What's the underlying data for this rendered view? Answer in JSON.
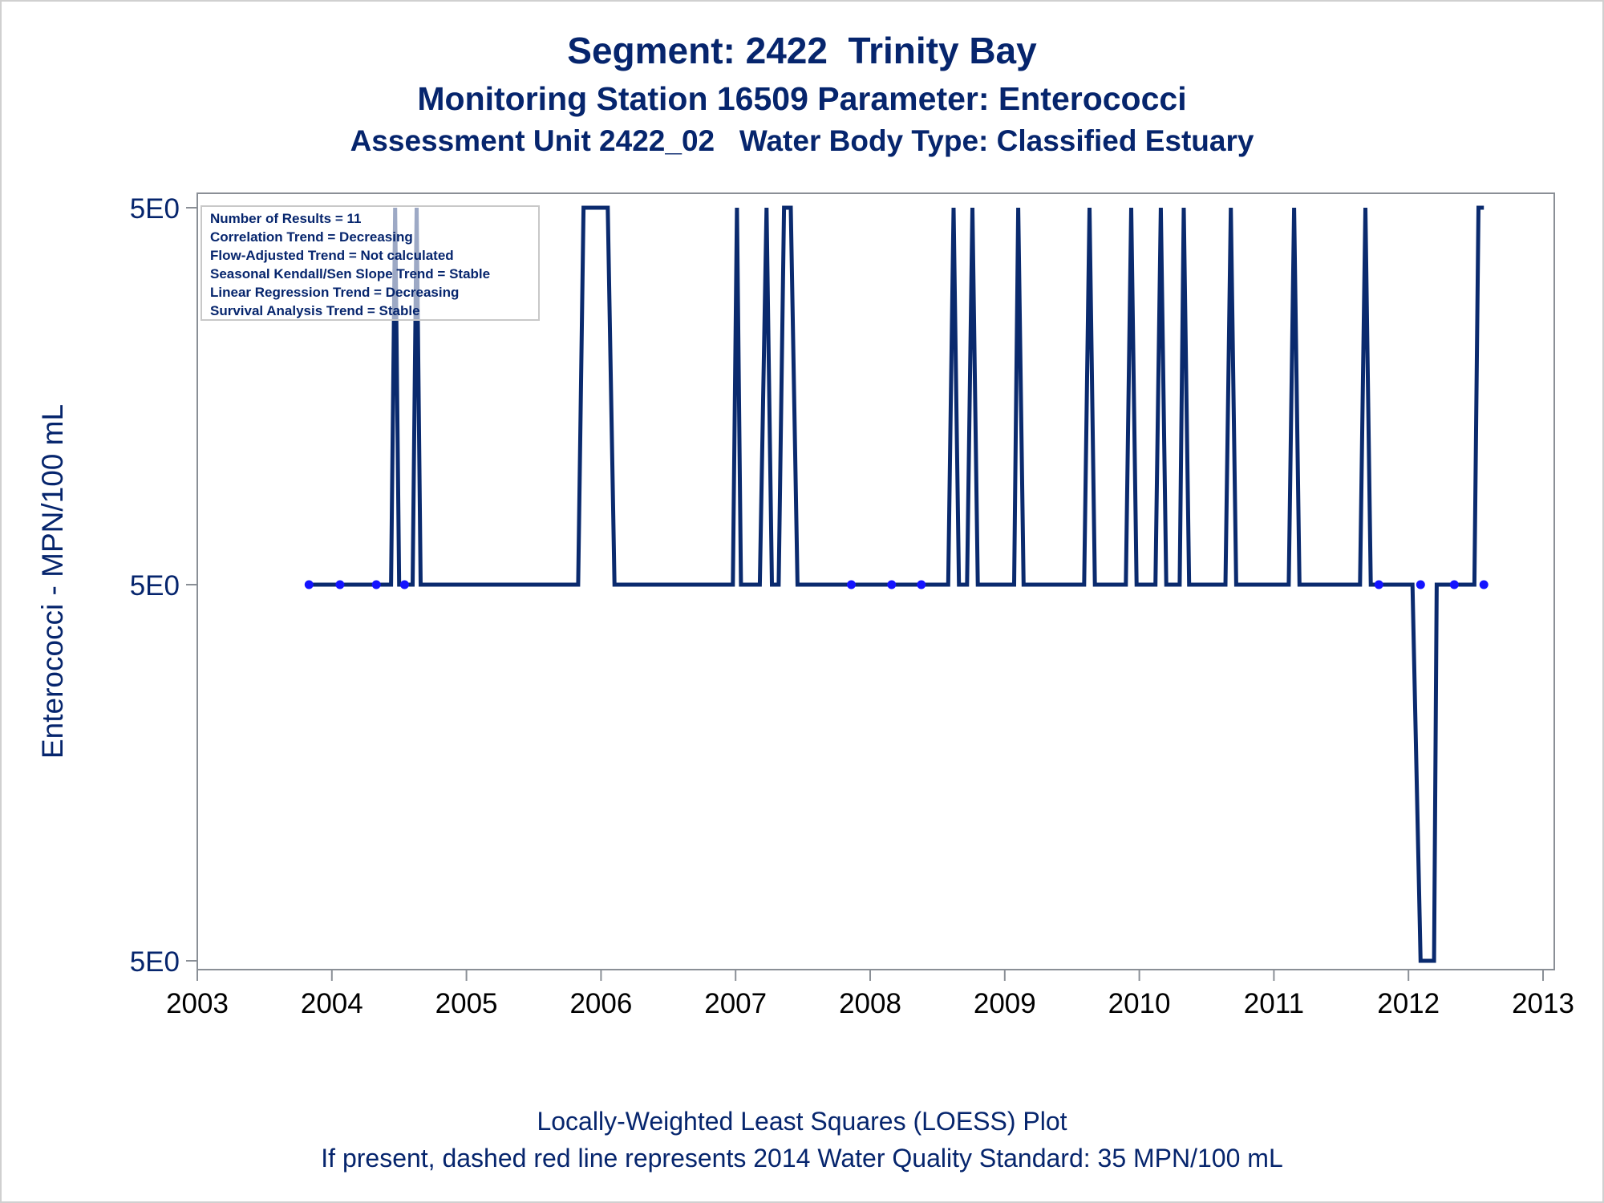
{
  "title": "Segment: 2422  Trinity Bay",
  "subtitle_1": "Monitoring Station 16509 Parameter: Enterococci",
  "subtitle_2": "Assessment Unit 2422_02   Water Body Type: Classified Estuary",
  "footnote_1": "Locally-Weighted Least Squares (LOESS) Plot",
  "footnote_2": "If present, dashed red line represents 2014 Water Quality Standard: 35 MPN/100 mL",
  "colors": {
    "text": "#06256d",
    "line": "#0a2a6e",
    "point": "#1414ff",
    "axis": "#8a8f96"
  },
  "chart_data": {
    "type": "line",
    "ylabel": "Enterococci - MPN/100 mL",
    "xlabel": "",
    "xlim": [
      2003,
      2013
    ],
    "x_ticks": [
      "2003",
      "2004",
      "2005",
      "2006",
      "2007",
      "2008",
      "2009",
      "2010",
      "2011",
      "2012",
      "2013"
    ],
    "y_ticks": [
      "5E0",
      "5E0",
      "5E0"
    ],
    "legend_box": {
      "placement": "top-left",
      "lines": [
        "Number of Results = 11",
        "Correlation Trend = Decreasing",
        "Flow-Adjusted Trend = Not calculated",
        "Seasonal Kendall/Sen Slope Trend = Stable",
        "Linear Regression Trend = Decreasing",
        "Survival Analysis Trend = Stable"
      ]
    },
    "points": [
      {
        "x": 2003.83,
        "y": 5
      },
      {
        "x": 2004.06,
        "y": 5
      },
      {
        "x": 2004.33,
        "y": 5
      },
      {
        "x": 2004.54,
        "y": 5
      },
      {
        "x": 2007.86,
        "y": 5
      },
      {
        "x": 2008.16,
        "y": 5
      },
      {
        "x": 2008.38,
        "y": 5
      },
      {
        "x": 2011.78,
        "y": 5
      },
      {
        "x": 2012.09,
        "y": 5
      },
      {
        "x": 2012.34,
        "y": 5
      },
      {
        "x": 2012.56,
        "y": 5
      }
    ],
    "loess_line": [
      [
        2003.83,
        "mid"
      ],
      [
        2004.44,
        "mid"
      ],
      [
        2004.47,
        "top"
      ],
      [
        2004.5,
        "mid"
      ],
      [
        2004.6,
        "mid"
      ],
      [
        2004.63,
        "top"
      ],
      [
        2004.66,
        "mid"
      ],
      [
        2005.83,
        "mid"
      ],
      [
        2005.87,
        "top"
      ],
      [
        2006.05,
        "top"
      ],
      [
        2006.1,
        "mid"
      ],
      [
        2006.98,
        "mid"
      ],
      [
        2007.01,
        "top"
      ],
      [
        2007.04,
        "mid"
      ],
      [
        2007.18,
        "mid"
      ],
      [
        2007.23,
        "top"
      ],
      [
        2007.27,
        "mid"
      ],
      [
        2007.32,
        "mid"
      ],
      [
        2007.36,
        "top"
      ],
      [
        2007.41,
        "top"
      ],
      [
        2007.46,
        "mid"
      ],
      [
        2008.58,
        "mid"
      ],
      [
        2008.62,
        "top"
      ],
      [
        2008.66,
        "mid"
      ],
      [
        2008.72,
        "mid"
      ],
      [
        2008.76,
        "top"
      ],
      [
        2008.8,
        "mid"
      ],
      [
        2009.07,
        "mid"
      ],
      [
        2009.1,
        "top"
      ],
      [
        2009.14,
        "mid"
      ],
      [
        2009.59,
        "mid"
      ],
      [
        2009.63,
        "top"
      ],
      [
        2009.67,
        "mid"
      ],
      [
        2009.9,
        "mid"
      ],
      [
        2009.94,
        "top"
      ],
      [
        2009.98,
        "mid"
      ],
      [
        2010.12,
        "mid"
      ],
      [
        2010.16,
        "top"
      ],
      [
        2010.2,
        "mid"
      ],
      [
        2010.3,
        "mid"
      ],
      [
        2010.33,
        "top"
      ],
      [
        2010.37,
        "mid"
      ],
      [
        2010.64,
        "mid"
      ],
      [
        2010.68,
        "top"
      ],
      [
        2010.72,
        "mid"
      ],
      [
        2011.11,
        "mid"
      ],
      [
        2011.15,
        "top"
      ],
      [
        2011.19,
        "mid"
      ],
      [
        2011.64,
        "mid"
      ],
      [
        2011.68,
        "top"
      ],
      [
        2011.72,
        "mid"
      ],
      [
        2012.03,
        "mid"
      ],
      [
        2012.09,
        "bottom"
      ],
      [
        2012.19,
        "bottom"
      ],
      [
        2012.21,
        "mid"
      ],
      [
        2012.49,
        "mid"
      ],
      [
        2012.52,
        "top"
      ],
      [
        2012.56,
        "top"
      ]
    ],
    "grid": false
  }
}
